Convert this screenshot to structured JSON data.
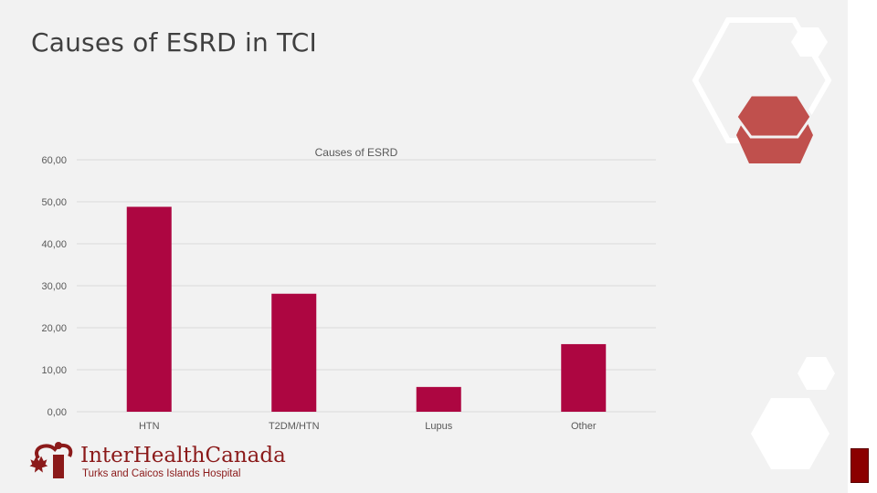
{
  "slide": {
    "title": "Causes of ESRD in TCI"
  },
  "chart_data": {
    "type": "bar",
    "title": "Causes of ESRD",
    "categories": [
      "HTN",
      "T2DM/HTN",
      "Lupus",
      "Other"
    ],
    "values": [
      48.8,
      28.1,
      5.9,
      16.1
    ],
    "yticks": [
      "0,00",
      "10,00",
      "20,00",
      "30,00",
      "40,00",
      "50,00",
      "60,00"
    ],
    "ylim": [
      0,
      60
    ],
    "grid": true,
    "legend": "none",
    "bar_color": "#ad0641"
  },
  "logo": {
    "name": "InterHealthCanada",
    "subtitle": "Turks and Caicos Islands Hospital",
    "color": "#8b1a1a"
  },
  "decor": {
    "hex_red": "#c0504d"
  }
}
